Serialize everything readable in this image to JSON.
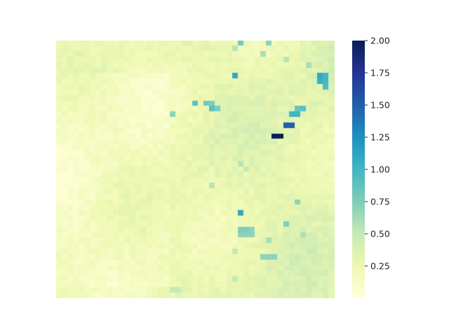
{
  "chart_data": {
    "type": "heatmap",
    "title": "",
    "xlabel": "",
    "ylabel": "",
    "grid_rows": 47,
    "grid_cols": 49,
    "value_range": [
      0.0,
      2.0
    ],
    "colormap": "YlGnBu",
    "colorbar": {
      "ticks": [
        2.0,
        1.75,
        1.5,
        1.25,
        1.0,
        0.75,
        0.5,
        0.25
      ],
      "tick_labels": [
        "2.00",
        "1.75",
        "1.50",
        "1.25",
        "1.00",
        "0.75",
        "0.50",
        "0.25"
      ],
      "range": [
        0.0,
        2.0
      ]
    },
    "background_level": 0.2,
    "notable_cells": [
      {
        "row": 0,
        "col": 32,
        "value": 0.8
      },
      {
        "row": 0,
        "col": 37,
        "value": 0.7
      },
      {
        "row": 1,
        "col": 31,
        "value": 0.55
      },
      {
        "row": 2,
        "col": 36,
        "value": 0.6
      },
      {
        "row": 3,
        "col": 40,
        "value": 0.55
      },
      {
        "row": 4,
        "col": 44,
        "value": 0.6
      },
      {
        "row": 6,
        "col": 31,
        "value": 1.1
      },
      {
        "row": 6,
        "col": 46,
        "value": 1.1
      },
      {
        "row": 6,
        "col": 47,
        "value": 1.0
      },
      {
        "row": 7,
        "col": 46,
        "value": 1.05
      },
      {
        "row": 7,
        "col": 47,
        "value": 1.0
      },
      {
        "row": 8,
        "col": 47,
        "value": 0.95
      },
      {
        "row": 11,
        "col": 24,
        "value": 0.9
      },
      {
        "row": 11,
        "col": 26,
        "value": 0.8
      },
      {
        "row": 11,
        "col": 27,
        "value": 0.75
      },
      {
        "row": 12,
        "col": 27,
        "value": 0.9
      },
      {
        "row": 12,
        "col": 28,
        "value": 0.75
      },
      {
        "row": 12,
        "col": 42,
        "value": 0.85
      },
      {
        "row": 12,
        "col": 43,
        "value": 0.9
      },
      {
        "row": 13,
        "col": 20,
        "value": 0.7
      },
      {
        "row": 13,
        "col": 41,
        "value": 1.0
      },
      {
        "row": 13,
        "col": 42,
        "value": 1.0
      },
      {
        "row": 15,
        "col": 40,
        "value": 1.5
      },
      {
        "row": 15,
        "col": 41,
        "value": 1.5
      },
      {
        "row": 17,
        "col": 38,
        "value": 2.0
      },
      {
        "row": 17,
        "col": 39,
        "value": 2.0
      },
      {
        "row": 22,
        "col": 32,
        "value": 0.55
      },
      {
        "row": 23,
        "col": 33,
        "value": 0.5
      },
      {
        "row": 26,
        "col": 27,
        "value": 0.55
      },
      {
        "row": 29,
        "col": 42,
        "value": 0.7
      },
      {
        "row": 31,
        "col": 32,
        "value": 1.1
      },
      {
        "row": 33,
        "col": 40,
        "value": 0.75
      },
      {
        "row": 34,
        "col": 32,
        "value": 0.75
      },
      {
        "row": 34,
        "col": 33,
        "value": 0.75
      },
      {
        "row": 34,
        "col": 34,
        "value": 0.7
      },
      {
        "row": 35,
        "col": 32,
        "value": 0.7
      },
      {
        "row": 35,
        "col": 33,
        "value": 0.7
      },
      {
        "row": 35,
        "col": 34,
        "value": 0.7
      },
      {
        "row": 35,
        "col": 43,
        "value": 0.6
      },
      {
        "row": 36,
        "col": 37,
        "value": 0.6
      },
      {
        "row": 38,
        "col": 31,
        "value": 0.5
      },
      {
        "row": 39,
        "col": 36,
        "value": 0.7
      },
      {
        "row": 39,
        "col": 37,
        "value": 0.7
      },
      {
        "row": 39,
        "col": 38,
        "value": 0.7
      },
      {
        "row": 43,
        "col": 31,
        "value": 0.5
      },
      {
        "row": 45,
        "col": 20,
        "value": 0.5
      },
      {
        "row": 45,
        "col": 21,
        "value": 0.5
      }
    ]
  }
}
